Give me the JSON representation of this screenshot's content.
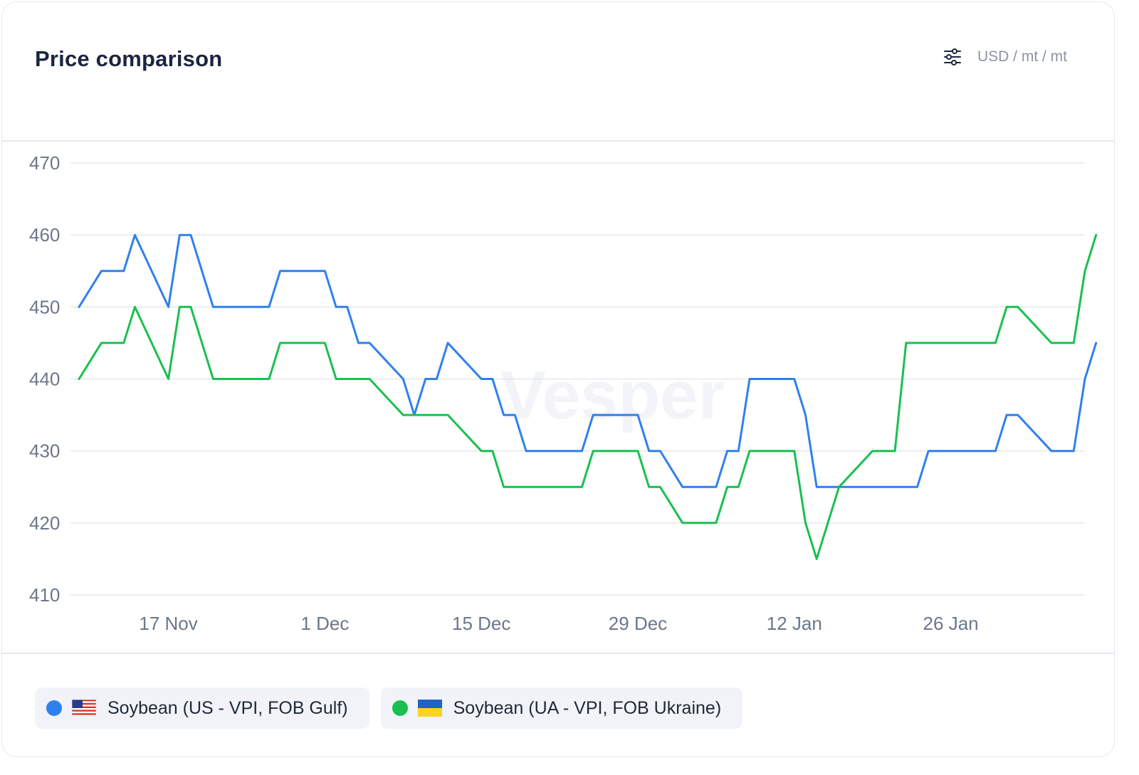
{
  "header": {
    "title": "Price comparison",
    "unit": "USD / mt / mt",
    "settings_icon": "sliders-icon"
  },
  "watermark": "Vesper",
  "legend": [
    {
      "label": "Soybean (US - VPI, FOB Gulf)",
      "color": "#2f80ed",
      "flag": "us-flag-icon"
    },
    {
      "label": "Soybean (UA - VPI, FOB Ukraine)",
      "color": "#19c04f",
      "flag": "ua-flag-icon"
    }
  ],
  "chart_data": {
    "type": "line",
    "ylim": [
      410,
      470
    ],
    "yticks": [
      470,
      460,
      450,
      440,
      430,
      420,
      410
    ],
    "xlim": [
      "2023-11-09",
      "2024-02-06"
    ],
    "xticks": [
      {
        "date": "2023-11-17",
        "label": "17 Nov"
      },
      {
        "date": "2023-12-01",
        "label": "1 Dec"
      },
      {
        "date": "2023-12-15",
        "label": "15 Dec"
      },
      {
        "date": "2023-12-29",
        "label": "29 Dec"
      },
      {
        "date": "2024-01-12",
        "label": "12 Jan"
      },
      {
        "date": "2024-01-26",
        "label": "26 Jan"
      }
    ],
    "grid": true,
    "series": [
      {
        "name": "Soybean (US - VPI, FOB Gulf)",
        "color": "#2f80ed",
        "points": [
          [
            "2023-11-09",
            450
          ],
          [
            "2023-11-11",
            455
          ],
          [
            "2023-11-13",
            455
          ],
          [
            "2023-11-14",
            460
          ],
          [
            "2023-11-17",
            450
          ],
          [
            "2023-11-18",
            460
          ],
          [
            "2023-11-19",
            460
          ],
          [
            "2023-11-21",
            450
          ],
          [
            "2023-11-26",
            450
          ],
          [
            "2023-11-27",
            455
          ],
          [
            "2023-12-01",
            455
          ],
          [
            "2023-12-02",
            450
          ],
          [
            "2023-12-03",
            450
          ],
          [
            "2023-12-04",
            445
          ],
          [
            "2023-12-05",
            445
          ],
          [
            "2023-12-08",
            440
          ],
          [
            "2023-12-09",
            435
          ],
          [
            "2023-12-10",
            440
          ],
          [
            "2023-12-11",
            440
          ],
          [
            "2023-12-12",
            445
          ],
          [
            "2023-12-15",
            440
          ],
          [
            "2023-12-16",
            440
          ],
          [
            "2023-12-17",
            435
          ],
          [
            "2023-12-18",
            435
          ],
          [
            "2023-12-19",
            430
          ],
          [
            "2023-12-24",
            430
          ],
          [
            "2023-12-25",
            435
          ],
          [
            "2023-12-29",
            435
          ],
          [
            "2023-12-30",
            430
          ],
          [
            "2023-12-31",
            430
          ],
          [
            "2024-01-02",
            425
          ],
          [
            "2024-01-05",
            425
          ],
          [
            "2024-01-06",
            430
          ],
          [
            "2024-01-07",
            430
          ],
          [
            "2024-01-08",
            440
          ],
          [
            "2024-01-12",
            440
          ],
          [
            "2024-01-13",
            435
          ],
          [
            "2024-01-14",
            425
          ],
          [
            "2024-01-23",
            425
          ],
          [
            "2024-01-24",
            430
          ],
          [
            "2024-01-30",
            430
          ],
          [
            "2024-01-31",
            435
          ],
          [
            "2024-02-01",
            435
          ],
          [
            "2024-02-04",
            430
          ],
          [
            "2024-02-06",
            430
          ],
          [
            "2024-02-07",
            440
          ],
          [
            "2024-02-08",
            445
          ]
        ]
      },
      {
        "name": "Soybean (UA - VPI, FOB Ukraine)",
        "color": "#19c04f",
        "points": [
          [
            "2023-11-09",
            440
          ],
          [
            "2023-11-11",
            445
          ],
          [
            "2023-11-13",
            445
          ],
          [
            "2023-11-14",
            450
          ],
          [
            "2023-11-17",
            440
          ],
          [
            "2023-11-18",
            450
          ],
          [
            "2023-11-19",
            450
          ],
          [
            "2023-11-21",
            440
          ],
          [
            "2023-11-26",
            440
          ],
          [
            "2023-11-27",
            445
          ],
          [
            "2023-12-01",
            445
          ],
          [
            "2023-12-02",
            440
          ],
          [
            "2023-12-05",
            440
          ],
          [
            "2023-12-08",
            435
          ],
          [
            "2023-12-12",
            435
          ],
          [
            "2023-12-15",
            430
          ],
          [
            "2023-12-16",
            430
          ],
          [
            "2023-12-17",
            425
          ],
          [
            "2023-12-24",
            425
          ],
          [
            "2023-12-25",
            430
          ],
          [
            "2023-12-29",
            430
          ],
          [
            "2023-12-30",
            425
          ],
          [
            "2023-12-31",
            425
          ],
          [
            "2024-01-02",
            420
          ],
          [
            "2024-01-05",
            420
          ],
          [
            "2024-01-06",
            425
          ],
          [
            "2024-01-07",
            425
          ],
          [
            "2024-01-08",
            430
          ],
          [
            "2024-01-12",
            430
          ],
          [
            "2024-01-13",
            420
          ],
          [
            "2024-01-14",
            415
          ],
          [
            "2024-01-16",
            425
          ],
          [
            "2024-01-19",
            430
          ],
          [
            "2024-01-21",
            430
          ],
          [
            "2024-01-22",
            445
          ],
          [
            "2024-01-30",
            445
          ],
          [
            "2024-01-31",
            450
          ],
          [
            "2024-02-01",
            450
          ],
          [
            "2024-02-04",
            445
          ],
          [
            "2024-02-06",
            445
          ],
          [
            "2024-02-07",
            455
          ],
          [
            "2024-02-08",
            460
          ]
        ]
      }
    ]
  }
}
